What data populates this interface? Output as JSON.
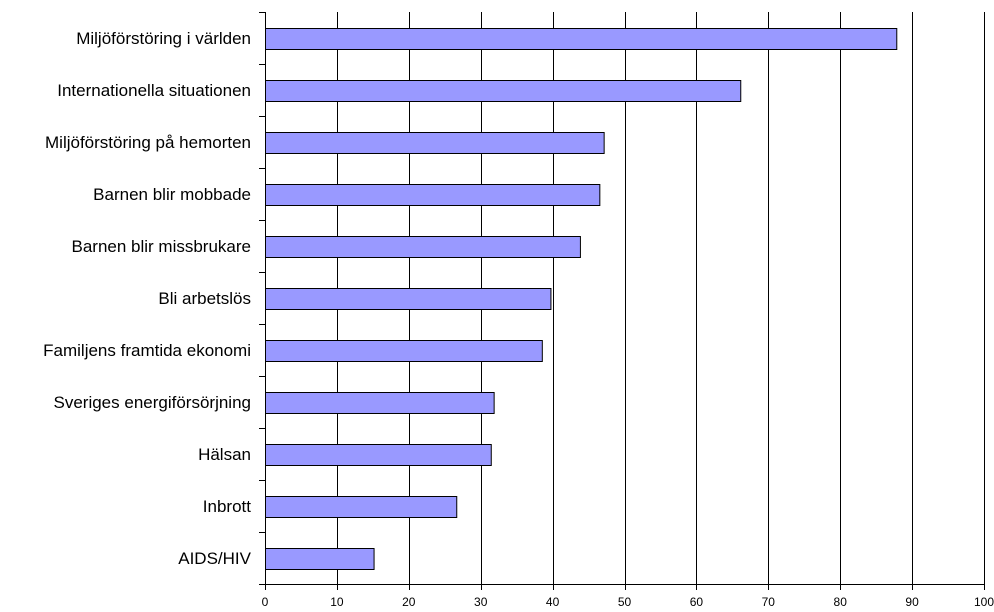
{
  "chart_data": {
    "type": "bar",
    "orientation": "horizontal",
    "title": "",
    "xlabel": "",
    "ylabel": "",
    "categories": [
      "Miljöförstöring i världen",
      "Internationella situationen",
      "Miljöförstöring på hemorten",
      "Barnen blir mobbade",
      "Barnen blir missbrukare",
      "Bli arbetslös",
      "Familjens framtida ekonomi",
      "Sveriges energiförsörjning",
      "Hälsan",
      "Inbrott",
      "AIDS/HIV"
    ],
    "values": [
      87.8,
      66.1,
      47.1,
      46.5,
      43.8,
      39.7,
      38.5,
      31.8,
      31.4,
      26.6,
      15.1
    ],
    "xlim": [
      0,
      100
    ],
    "xticks": [
      "0",
      "10",
      "20",
      "30",
      "40",
      "50",
      "60",
      "70",
      "80",
      "90",
      "100"
    ],
    "grid": "vertical",
    "legend": "none",
    "colors": {
      "bar_fill": "#9999ff",
      "bar_stroke": "#000000",
      "grid": "#000000",
      "axis": "#000000"
    }
  }
}
